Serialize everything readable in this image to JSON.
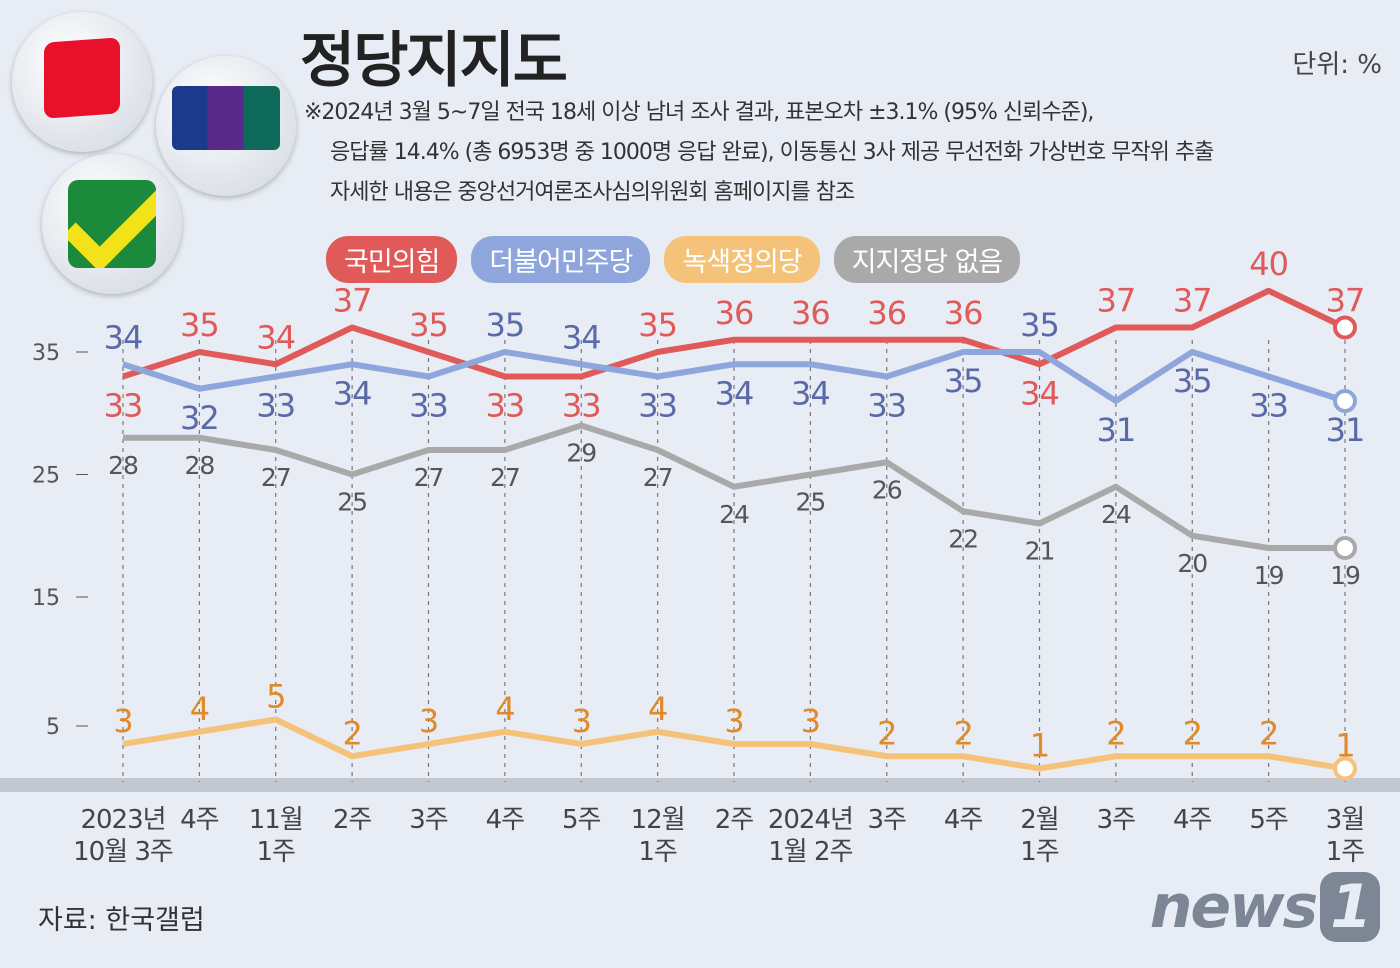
{
  "title": "정당지지도",
  "unit": "단위: %",
  "notes": [
    "※2024년 3월 5~7일 전국 18세 이상 남녀 조사 결과, 표본오차 ±3.1% (95% 신뢰수준),",
    "응답률 14.4% (총 6953명 중 1000명 응답 완료), 이동통신 3사 제공 무선전화 가상번호 무작위 추출",
    "자세한 내용은 중앙선거여론조사심의위원회 홈페이지를 참조"
  ],
  "source": "자료: 한국갤럽",
  "brand": "news1",
  "chart_data": {
    "type": "line",
    "title": "정당지지도",
    "yticks": [
      35,
      25,
      15,
      5
    ],
    "grid": "vertical dashed",
    "legend_position": "top",
    "categories": [
      [
        "2023년",
        "10월 3주"
      ],
      [
        "4주"
      ],
      [
        "11월",
        "1주"
      ],
      [
        "2주"
      ],
      [
        "3주"
      ],
      [
        "4주"
      ],
      [
        "5주"
      ],
      [
        "12월",
        "1주"
      ],
      [
        "2주"
      ],
      [
        "2024년",
        "1월 2주"
      ],
      [
        "3주"
      ],
      [
        "4주"
      ],
      [
        "2월",
        "1주"
      ],
      [
        "3주"
      ],
      [
        "4주"
      ],
      [
        "5주"
      ],
      [
        "3월",
        "1주"
      ]
    ],
    "series": [
      {
        "name": "국민의힘",
        "color": "#e05a5a",
        "values": [
          33,
          35,
          34,
          37,
          35,
          33,
          33,
          35,
          36,
          36,
          36,
          36,
          34,
          37,
          37,
          40,
          37
        ]
      },
      {
        "name": "더불어민주당",
        "color": "#8fa6dc",
        "label_color": "#5a6aa8",
        "values": [
          34,
          32,
          33,
          34,
          33,
          35,
          34,
          33,
          34,
          34,
          33,
          35,
          35,
          31,
          35,
          33,
          31
        ]
      },
      {
        "name": "녹색정의당",
        "color": "#f5c27a",
        "label_color": "#e08a2a",
        "values": [
          3,
          4,
          5,
          2,
          3,
          4,
          3,
          4,
          3,
          3,
          2,
          2,
          1,
          2,
          2,
          2,
          1
        ]
      },
      {
        "name": "지지정당 없음",
        "color": "#a9a9a9",
        "label_color": "#555555",
        "values": [
          28,
          28,
          27,
          25,
          27,
          27,
          29,
          27,
          24,
          25,
          26,
          22,
          21,
          24,
          20,
          19,
          19
        ]
      }
    ]
  }
}
